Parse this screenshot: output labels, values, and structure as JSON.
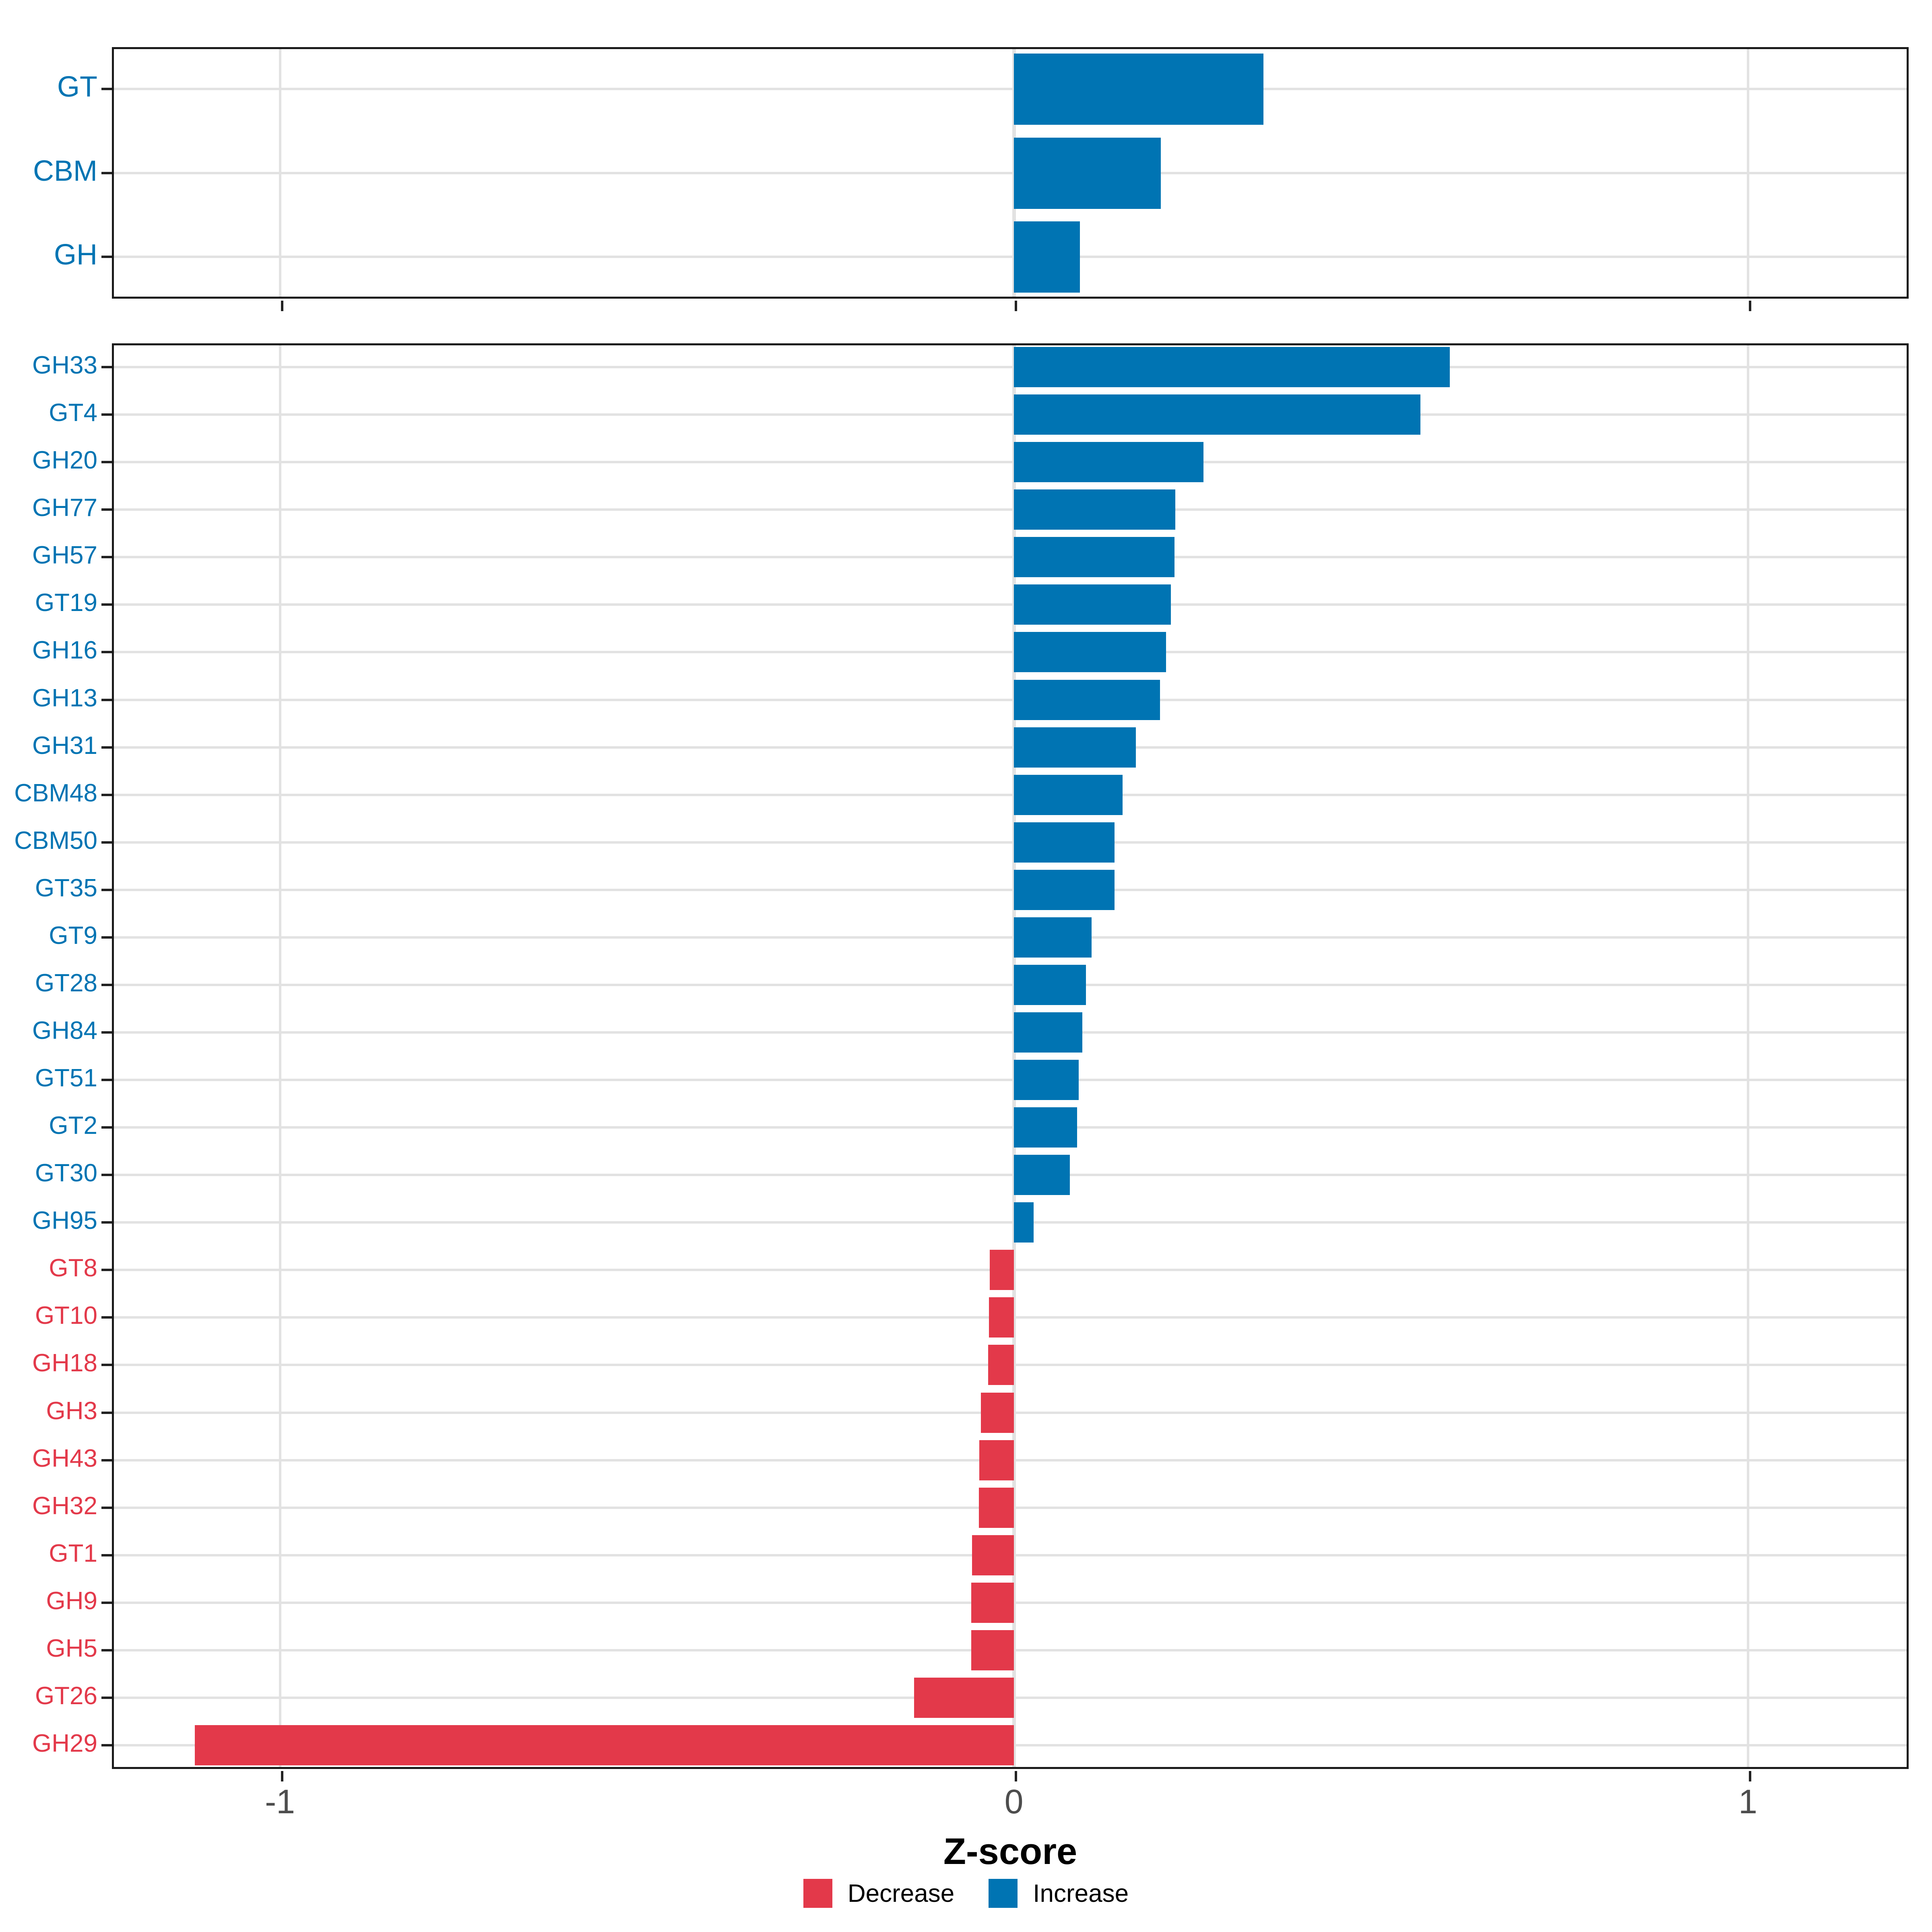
{
  "chart_data": {
    "type": "bar",
    "orientation": "horizontal",
    "xlabel": "Z-score",
    "x_ticks": [
      "-1",
      "0",
      "1"
    ],
    "x_tick_values": [
      -1,
      0,
      1
    ],
    "xlim": [
      -1.229,
      1.219
    ],
    "grid": "major vertical at -1,0,1 and horizontal per category",
    "legend_position": "bottom-center",
    "colors": {
      "increase": "#0074B3",
      "decrease": "#E3394A"
    },
    "legend": [
      {
        "label": "Decrease",
        "direction": "decrease",
        "color": "#E3394A"
      },
      {
        "label": "Increase",
        "direction": "increase",
        "color": "#0074B3"
      }
    ],
    "panels": [
      {
        "name": "enzyme-classes",
        "categories": [
          "GT",
          "CBM",
          "GH"
        ],
        "values": [
          0.34,
          0.2,
          0.09
        ],
        "directions": [
          "increase",
          "increase",
          "increase"
        ]
      },
      {
        "name": "enzyme-families",
        "categories": [
          "GH33",
          "GT4",
          "GH20",
          "GH77",
          "GH57",
          "GT19",
          "GH16",
          "GH13",
          "GH31",
          "CBM48",
          "CBM50",
          "GT35",
          "GT9",
          "GT28",
          "GH84",
          "GT51",
          "GT2",
          "GT30",
          "GH95",
          "GT8",
          "GT10",
          "GH18",
          "GH3",
          "GH43",
          "GH32",
          "GT1",
          "GH9",
          "GH5",
          "GT26",
          "GH29"
        ],
        "values": [
          0.594,
          0.554,
          0.258,
          0.22,
          0.219,
          0.214,
          0.207,
          0.199,
          0.166,
          0.148,
          0.137,
          0.137,
          0.106,
          0.098,
          0.093,
          0.088,
          0.086,
          0.076,
          0.027,
          -0.033,
          -0.034,
          -0.035,
          -0.045,
          -0.047,
          -0.048,
          -0.057,
          -0.058,
          -0.058,
          -0.136,
          -1.116
        ],
        "directions": [
          "increase",
          "increase",
          "increase",
          "increase",
          "increase",
          "increase",
          "increase",
          "increase",
          "increase",
          "increase",
          "increase",
          "increase",
          "increase",
          "increase",
          "increase",
          "increase",
          "increase",
          "increase",
          "increase",
          "decrease",
          "decrease",
          "decrease",
          "decrease",
          "decrease",
          "decrease",
          "decrease",
          "decrease",
          "decrease",
          "decrease",
          "decrease"
        ]
      }
    ]
  }
}
